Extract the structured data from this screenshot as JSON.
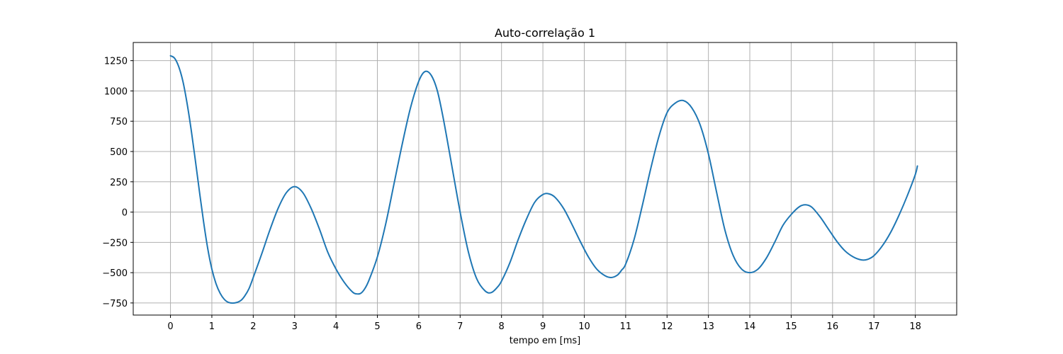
{
  "chart_data": {
    "type": "line",
    "title": "Auto-correlação 1",
    "xlabel": "tempo em [ms]",
    "ylabel": "",
    "xlim": [
      -0.9,
      19.0
    ],
    "ylim": [
      -850,
      1400
    ],
    "x_ticks": [
      0,
      1,
      2,
      3,
      4,
      5,
      6,
      7,
      8,
      9,
      10,
      11,
      12,
      13,
      14,
      15,
      16,
      17,
      18
    ],
    "x_tick_labels": [
      "0",
      "1",
      "2",
      "3",
      "4",
      "5",
      "6",
      "7",
      "8",
      "9",
      "10",
      "11",
      "12",
      "13",
      "14",
      "15",
      "16",
      "17",
      "18"
    ],
    "y_ticks": [
      -750,
      -500,
      -250,
      0,
      250,
      500,
      750,
      1000,
      1250
    ],
    "y_tick_labels": [
      "−750",
      "−500",
      "−250",
      "0",
      "250",
      "500",
      "750",
      "1000",
      "1250"
    ],
    "grid": true,
    "series": [
      {
        "color": "#1f77b4",
        "points": [
          [
            0.0,
            1290
          ],
          [
            0.1,
            1270
          ],
          [
            0.2,
            1200
          ],
          [
            0.3,
            1080
          ],
          [
            0.4,
            900
          ],
          [
            0.5,
            680
          ],
          [
            0.6,
            430
          ],
          [
            0.7,
            170
          ],
          [
            0.8,
            -80
          ],
          [
            0.9,
            -300
          ],
          [
            1.0,
            -470
          ],
          [
            1.1,
            -590
          ],
          [
            1.2,
            -670
          ],
          [
            1.3,
            -720
          ],
          [
            1.4,
            -745
          ],
          [
            1.55,
            -750
          ],
          [
            1.7,
            -730
          ],
          [
            1.8,
            -690
          ],
          [
            1.9,
            -630
          ],
          [
            2.0,
            -540
          ],
          [
            2.2,
            -350
          ],
          [
            2.4,
            -150
          ],
          [
            2.6,
            30
          ],
          [
            2.8,
            160
          ],
          [
            3.0,
            210
          ],
          [
            3.2,
            160
          ],
          [
            3.4,
            30
          ],
          [
            3.6,
            -140
          ],
          [
            3.8,
            -330
          ],
          [
            4.0,
            -470
          ],
          [
            4.2,
            -580
          ],
          [
            4.4,
            -660
          ],
          [
            4.5,
            -675
          ],
          [
            4.6,
            -670
          ],
          [
            4.7,
            -630
          ],
          [
            4.8,
            -560
          ],
          [
            5.0,
            -370
          ],
          [
            5.2,
            -100
          ],
          [
            5.4,
            230
          ],
          [
            5.6,
            560
          ],
          [
            5.8,
            860
          ],
          [
            6.0,
            1080
          ],
          [
            6.15,
            1160
          ],
          [
            6.3,
            1130
          ],
          [
            6.45,
            1000
          ],
          [
            6.6,
            760
          ],
          [
            6.8,
            380
          ],
          [
            7.0,
            0
          ],
          [
            7.2,
            -330
          ],
          [
            7.4,
            -550
          ],
          [
            7.6,
            -650
          ],
          [
            7.75,
            -665
          ],
          [
            7.9,
            -620
          ],
          [
            8.0,
            -570
          ],
          [
            8.2,
            -420
          ],
          [
            8.4,
            -230
          ],
          [
            8.6,
            -60
          ],
          [
            8.8,
            80
          ],
          [
            9.0,
            145
          ],
          [
            9.15,
            150
          ],
          [
            9.3,
            120
          ],
          [
            9.5,
            30
          ],
          [
            9.7,
            -100
          ],
          [
            9.9,
            -240
          ],
          [
            10.1,
            -370
          ],
          [
            10.3,
            -470
          ],
          [
            10.5,
            -525
          ],
          [
            10.65,
            -540
          ],
          [
            10.8,
            -520
          ],
          [
            10.9,
            -480
          ],
          [
            11.0,
            -430
          ],
          [
            11.2,
            -230
          ],
          [
            11.4,
            50
          ],
          [
            11.6,
            350
          ],
          [
            11.8,
            620
          ],
          [
            12.0,
            820
          ],
          [
            12.2,
            900
          ],
          [
            12.4,
            920
          ],
          [
            12.6,
            860
          ],
          [
            12.8,
            720
          ],
          [
            13.0,
            480
          ],
          [
            13.2,
            160
          ],
          [
            13.4,
            -150
          ],
          [
            13.6,
            -360
          ],
          [
            13.8,
            -470
          ],
          [
            14.0,
            -500
          ],
          [
            14.2,
            -470
          ],
          [
            14.4,
            -380
          ],
          [
            14.6,
            -250
          ],
          [
            14.8,
            -110
          ],
          [
            15.0,
            -20
          ],
          [
            15.2,
            45
          ],
          [
            15.35,
            60
          ],
          [
            15.5,
            40
          ],
          [
            15.7,
            -40
          ],
          [
            15.9,
            -140
          ],
          [
            16.1,
            -240
          ],
          [
            16.3,
            -320
          ],
          [
            16.5,
            -370
          ],
          [
            16.7,
            -395
          ],
          [
            16.85,
            -390
          ],
          [
            17.0,
            -360
          ],
          [
            17.2,
            -280
          ],
          [
            17.4,
            -170
          ],
          [
            17.6,
            -30
          ],
          [
            17.8,
            130
          ],
          [
            18.0,
            310
          ],
          [
            18.05,
            380
          ]
        ]
      }
    ]
  }
}
